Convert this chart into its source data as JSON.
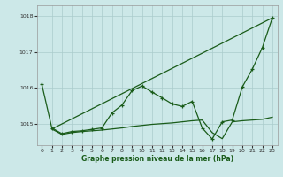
{
  "xlabel": "Graphe pression niveau de la mer (hPa)",
  "bg_color": "#cce8e8",
  "grid_color": "#aacccc",
  "line_color": "#1a5c1a",
  "xlim": [
    -0.5,
    23.5
  ],
  "ylim": [
    1014.4,
    1018.3
  ],
  "yticks": [
    1015,
    1016,
    1017,
    1018
  ],
  "xticks": [
    0,
    1,
    2,
    3,
    4,
    5,
    6,
    7,
    8,
    9,
    10,
    11,
    12,
    13,
    14,
    15,
    16,
    17,
    18,
    19,
    20,
    21,
    22,
    23
  ],
  "series": [
    {
      "x": [
        1,
        23
      ],
      "y": [
        1014.85,
        1017.95
      ],
      "has_markers": false,
      "linewidth": 0.9
    },
    {
      "x": [
        1,
        2,
        3,
        4,
        5,
        6,
        7,
        8,
        9,
        10,
        11,
        12,
        13,
        14,
        15,
        16,
        17,
        18,
        19,
        20,
        21,
        22,
        23
      ],
      "y": [
        1014.85,
        1014.7,
        1014.75,
        1014.78,
        1014.8,
        1014.82,
        1014.85,
        1014.88,
        1014.92,
        1014.95,
        1014.98,
        1015.0,
        1015.02,
        1015.05,
        1015.08,
        1015.1,
        1014.75,
        1014.58,
        1015.05,
        1015.08,
        1015.1,
        1015.12,
        1015.18
      ],
      "has_markers": false,
      "linewidth": 0.9
    },
    {
      "x": [
        0,
        1,
        2,
        3,
        4,
        5,
        6,
        7,
        8,
        9,
        10,
        11,
        12,
        13,
        14,
        15,
        16,
        17,
        18,
        19,
        20,
        21,
        22,
        23
      ],
      "y": [
        1016.1,
        1014.88,
        1014.72,
        1014.78,
        1014.8,
        1014.84,
        1014.88,
        1015.3,
        1015.52,
        1015.92,
        1016.05,
        1015.88,
        1015.72,
        1015.55,
        1015.48,
        1015.62,
        1014.88,
        1014.57,
        1015.05,
        1015.1,
        1016.02,
        1016.52,
        1017.12,
        1017.95
      ],
      "has_markers": true,
      "linewidth": 0.9
    }
  ]
}
